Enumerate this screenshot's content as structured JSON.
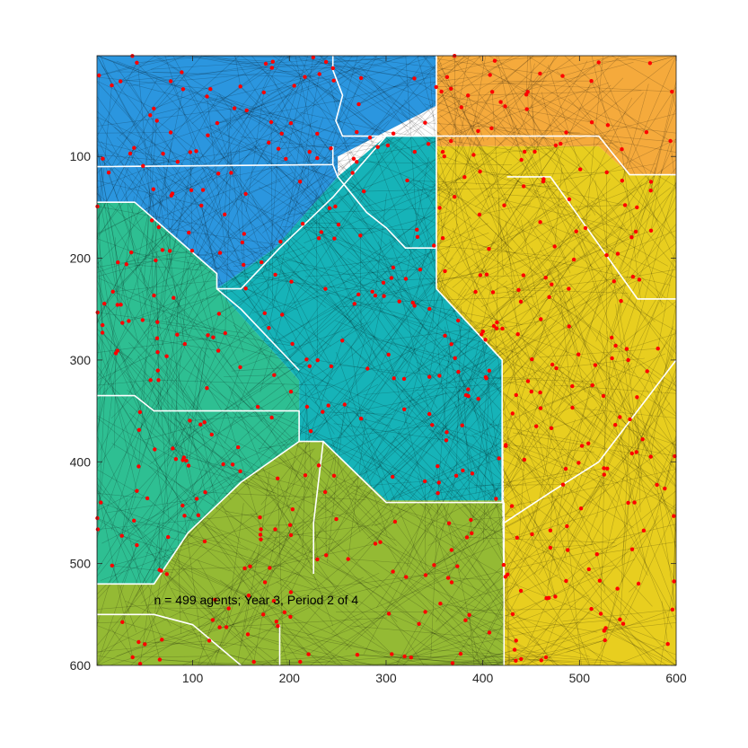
{
  "chart_data": {
    "type": "scatter",
    "title": "",
    "xlabel": "",
    "ylabel": "",
    "xlim": [
      1,
      600
    ],
    "ylim": [
      1,
      600
    ],
    "y_reversed": true,
    "x_ticks": [
      100,
      200,
      300,
      400,
      500,
      600
    ],
    "y_ticks": [
      100,
      200,
      300,
      400,
      500,
      600
    ],
    "annotation": "n = 499 agents; Year 3, Period 2 of 4",
    "annotation_anchor": [
      60,
      540
    ],
    "agent_count": 499,
    "point_color": "#ff0000",
    "track_color": "#000000",
    "boundary_color": "#ffffff",
    "regions": [
      {
        "color": "#2b96df",
        "polygon": [
          [
            1,
            1
          ],
          [
            352,
            1
          ],
          [
            352,
            50
          ],
          [
            250,
            100
          ],
          [
            250,
            120
          ],
          [
            185,
            190
          ],
          [
            125,
            230
          ],
          [
            125,
            215
          ],
          [
            40,
            145
          ],
          [
            1,
            145
          ]
        ]
      },
      {
        "color": "#f5aa3c",
        "polygon": [
          [
            352,
            1
          ],
          [
            600,
            1
          ],
          [
            600,
            118
          ],
          [
            552,
            118
          ],
          [
            520,
            90
          ],
          [
            352,
            90
          ]
        ]
      },
      {
        "color": "#e8ce1f",
        "polygon": [
          [
            352,
            90
          ],
          [
            520,
            90
          ],
          [
            552,
            118
          ],
          [
            600,
            118
          ],
          [
            600,
            600
          ],
          [
            422,
            600
          ],
          [
            422,
            440
          ],
          [
            420,
            300
          ],
          [
            352,
            230
          ]
        ]
      },
      {
        "color": "#2ebf92",
        "polygon": [
          [
            1,
            145
          ],
          [
            40,
            145
          ],
          [
            125,
            215
          ],
          [
            125,
            230
          ],
          [
            210,
            320
          ],
          [
            210,
            380
          ],
          [
            150,
            420
          ],
          [
            95,
            470
          ],
          [
            60,
            520
          ],
          [
            1,
            520
          ]
        ]
      },
      {
        "color": "#16b3b8",
        "polygon": [
          [
            125,
            230
          ],
          [
            185,
            190
          ],
          [
            250,
            120
          ],
          [
            300,
            80
          ],
          [
            352,
            80
          ],
          [
            352,
            230
          ],
          [
            420,
            300
          ],
          [
            420,
            438
          ],
          [
            300,
            438
          ],
          [
            235,
            380
          ],
          [
            210,
            380
          ],
          [
            210,
            320
          ]
        ]
      },
      {
        "color": "#94ba34",
        "polygon": [
          [
            210,
            380
          ],
          [
            235,
            380
          ],
          [
            300,
            438
          ],
          [
            420,
            438
          ],
          [
            422,
            600
          ],
          [
            1,
            600
          ],
          [
            1,
            520
          ],
          [
            60,
            520
          ],
          [
            95,
            470
          ],
          [
            150,
            420
          ]
        ]
      }
    ],
    "boundaries": [
      [
        [
          1,
          110
        ],
        [
          245,
          108
        ],
        [
          245,
          90
        ]
      ],
      [
        [
          245,
          1
        ],
        [
          245,
          15
        ],
        [
          255,
          40
        ],
        [
          248,
          65
        ],
        [
          255,
          80
        ],
        [
          300,
          80
        ],
        [
          352,
          80
        ]
      ],
      [
        [
          352,
          1
        ],
        [
          352,
          230
        ]
      ],
      [
        [
          352,
          80
        ],
        [
          520,
          80
        ],
        [
          552,
          118
        ],
        [
          600,
          118
        ]
      ],
      [
        [
          425,
          120
        ],
        [
          470,
          120
        ],
        [
          560,
          240
        ],
        [
          600,
          240
        ]
      ],
      [
        [
          1,
          145
        ],
        [
          40,
          145
        ],
        [
          125,
          215
        ],
        [
          125,
          230
        ],
        [
          150,
          250
        ],
        [
          210,
          310
        ]
      ],
      [
        [
          125,
          230
        ],
        [
          150,
          230
        ],
        [
          190,
          190
        ],
        [
          245,
          140
        ],
        [
          300,
          80
        ]
      ],
      [
        [
          245,
          108
        ],
        [
          250,
          120
        ],
        [
          280,
          155
        ],
        [
          300,
          170
        ],
        [
          320,
          190
        ],
        [
          352,
          190
        ]
      ],
      [
        [
          352,
          230
        ],
        [
          420,
          300
        ],
        [
          420,
          440
        ]
      ],
      [
        [
          422,
          440
        ],
        [
          422,
          600
        ]
      ],
      [
        [
          422,
          460
        ],
        [
          470,
          430
        ],
        [
          520,
          400
        ],
        [
          560,
          350
        ],
        [
          600,
          300
        ]
      ],
      [
        [
          1,
          335
        ],
        [
          40,
          335
        ],
        [
          60,
          350
        ],
        [
          210,
          350
        ],
        [
          210,
          380
        ]
      ],
      [
        [
          210,
          380
        ],
        [
          235,
          380
        ],
        [
          300,
          440
        ],
        [
          420,
          440
        ]
      ],
      [
        [
          235,
          380
        ],
        [
          230,
          420
        ],
        [
          225,
          460
        ],
        [
          225,
          510
        ]
      ],
      [
        [
          1,
          520
        ],
        [
          60,
          520
        ],
        [
          95,
          470
        ],
        [
          150,
          420
        ],
        [
          210,
          380
        ]
      ],
      [
        [
          1,
          550
        ],
        [
          60,
          550
        ],
        [
          100,
          560
        ],
        [
          150,
          600
        ]
      ],
      [
        [
          190,
          560
        ],
        [
          190,
          600
        ]
      ]
    ]
  }
}
